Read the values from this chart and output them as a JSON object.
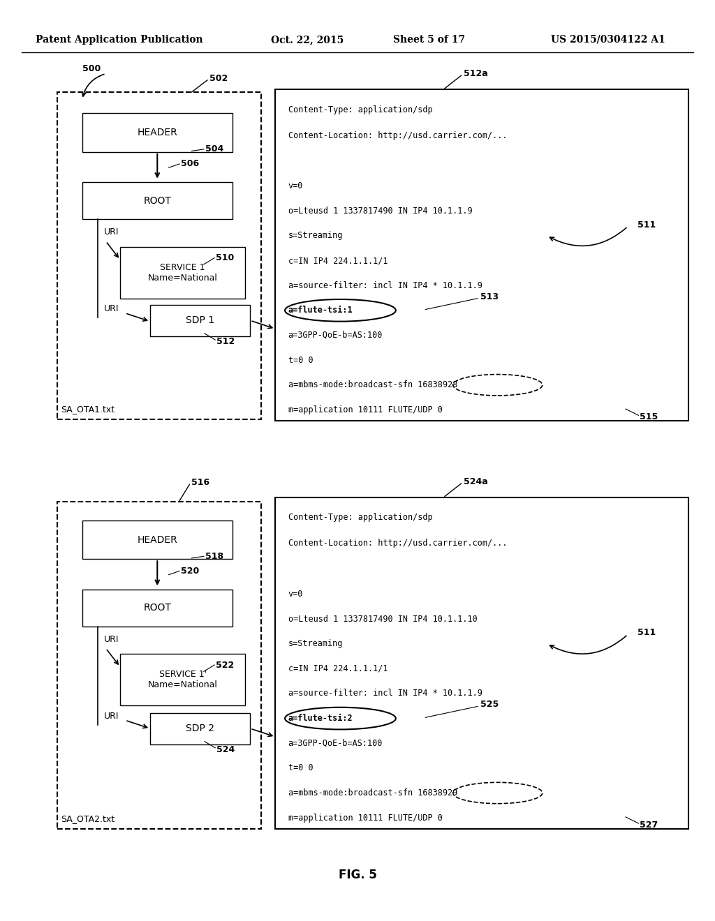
{
  "bg_color": "#ffffff",
  "header_text": "Patent Application Publication",
  "header_date": "Oct. 22, 2015",
  "header_sheet": "Sheet 5 of 17",
  "header_patent": "US 2015/0304122 A1",
  "fig_label": "FIG. 5",
  "sdp_lines1": [
    "Content-Type: application/sdp",
    "Content-Location: http://usd.carrier.com/...",
    "",
    "v=0",
    "o=Lteusd 1 1337817490 IN IP4 10.1.1.9",
    "s=Streaming",
    "c=IN IP4 224.1.1.1/1",
    "a=source-filter: incl IN IP4 * 10.1.1.9",
    "a=flute-tsi:1",
    "a=3GPP-QoE-b=AS:100",
    "t=0 0",
    "a=mbms-mode:broadcast-sfn 16838928",
    "m=application 10111 FLUTE/UDP 0"
  ],
  "sdp_lines2": [
    "Content-Type: application/sdp",
    "Content-Location: http://usd.carrier.com/...",
    "",
    "v=0",
    "o=Lteusd 1 1337817490 IN IP4 10.1.1.10",
    "s=Streaming",
    "c=IN IP4 224.1.1.1/1",
    "a=source-filter: incl IN IP4 * 10.1.1.9",
    "a=flute-tsi:2",
    "a=3GPP-QoE-b=AS:100",
    "t=0 0",
    "a=mbms-mode:broadcast-sfn 16838929",
    "m=application 10111 FLUTE/UDP 0"
  ]
}
